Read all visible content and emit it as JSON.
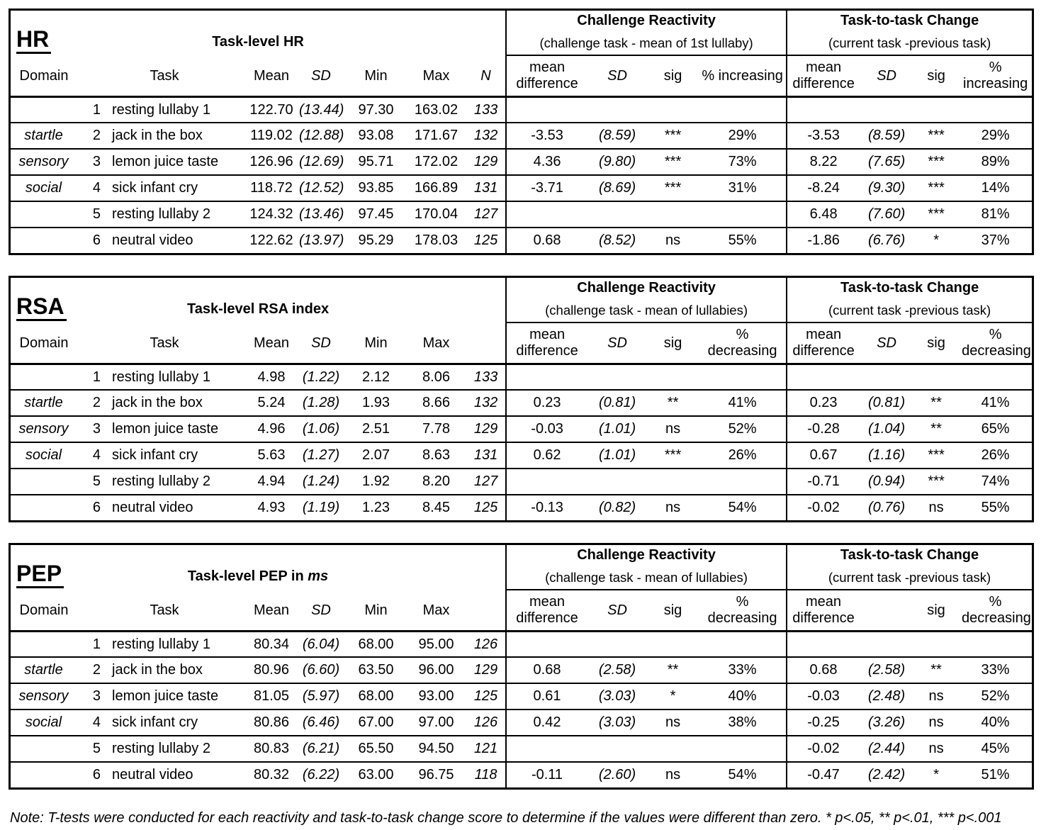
{
  "page": {
    "background": "#ffffff",
    "text_color": "#000000"
  },
  "tables": [
    {
      "title": "HR",
      "level_title": "Task-level HR",
      "level_title_italic": "",
      "col_labels": {
        "domain": "Domain",
        "task": "Task",
        "mean": "Mean",
        "sd": "SD",
        "min": "Min",
        "max": "Max",
        "n": "N"
      },
      "challenge_reactivity": {
        "title": "Challenge Reactivity",
        "subtitle": "(challenge task - mean of 1st lullaby)",
        "cols": [
          "mean difference",
          "SD",
          "sig",
          "% increasing"
        ]
      },
      "task_to_task": {
        "title": "Task-to-task Change",
        "subtitle": "(current task -previous task)",
        "cols": [
          "mean difference",
          "SD",
          "sig",
          "% increasing"
        ]
      },
      "rows": [
        [
          "",
          "1",
          "resting lullaby 1",
          "122.70",
          "(13.44)",
          "97.30",
          "163.02",
          "133",
          "",
          "",
          "",
          "",
          "",
          "",
          "",
          ""
        ],
        [
          "startle",
          "2",
          "jack in the box",
          "119.02",
          "(12.88)",
          "93.08",
          "171.67",
          "132",
          "-3.53",
          "(8.59)",
          "***",
          "29%",
          "-3.53",
          "(8.59)",
          "***",
          "29%"
        ],
        [
          "sensory",
          "3",
          "lemon juice taste",
          "126.96",
          "(12.69)",
          "95.71",
          "172.02",
          "129",
          "4.36",
          "(9.80)",
          "***",
          "73%",
          "8.22",
          "(7.65)",
          "***",
          "89%"
        ],
        [
          "social",
          "4",
          "sick infant cry",
          "118.72",
          "(12.52)",
          "93.85",
          "166.89",
          "131",
          "-3.71",
          "(8.69)",
          "***",
          "31%",
          "-8.24",
          "(9.30)",
          "***",
          "14%"
        ],
        [
          "",
          "5",
          "resting lullaby 2",
          "124.32",
          "(13.46)",
          "97.45",
          "170.04",
          "127",
          "",
          "",
          "",
          "",
          "6.48",
          "(7.60)",
          "***",
          "81%"
        ],
        [
          "",
          "6",
          "neutral video",
          "122.62",
          "(13.97)",
          "95.29",
          "178.03",
          "125",
          "0.68",
          "(8.52)",
          "ns",
          "55%",
          "-1.86",
          "(6.76)",
          "*",
          "37%"
        ]
      ]
    },
    {
      "title": "RSA",
      "level_title": "Task-level RSA index",
      "level_title_italic": "",
      "col_labels": {
        "domain": "Domain",
        "task": "Task",
        "mean": "Mean",
        "sd": "SD",
        "min": "Min",
        "max": "Max",
        "n": ""
      },
      "challenge_reactivity": {
        "title": "Challenge Reactivity",
        "subtitle": "(challenge task - mean of lullabies)",
        "cols": [
          "mean difference",
          "SD",
          "sig",
          "%\ndecreasing"
        ]
      },
      "task_to_task": {
        "title": "Task-to-task Change",
        "subtitle": "(current task -previous task)",
        "cols": [
          "mean difference",
          "SD",
          "sig",
          "%\ndecreasing"
        ]
      },
      "rows": [
        [
          "",
          "1",
          "resting lullaby 1",
          "4.98",
          "(1.22)",
          "2.12",
          "8.06",
          "133",
          "",
          "",
          "",
          "",
          "",
          "",
          "",
          ""
        ],
        [
          "startle",
          "2",
          "jack in the box",
          "5.24",
          "(1.28)",
          "1.93",
          "8.66",
          "132",
          "0.23",
          "(0.81)",
          "**",
          "41%",
          "0.23",
          "(0.81)",
          "**",
          "41%"
        ],
        [
          "sensory",
          "3",
          "lemon juice taste",
          "4.96",
          "(1.06)",
          "2.51",
          "7.78",
          "129",
          "-0.03",
          "(1.01)",
          "ns",
          "52%",
          "-0.28",
          "(1.04)",
          "**",
          "65%"
        ],
        [
          "social",
          "4",
          "sick infant cry",
          "5.63",
          "(1.27)",
          "2.07",
          "8.63",
          "131",
          "0.62",
          "(1.01)",
          "***",
          "26%",
          "0.67",
          "(1.16)",
          "***",
          "26%"
        ],
        [
          "",
          "5",
          "resting lullaby 2",
          "4.94",
          "(1.24)",
          "1.92",
          "8.20",
          "127",
          "",
          "",
          "",
          "",
          "-0.71",
          "(0.94)",
          "***",
          "74%"
        ],
        [
          "",
          "6",
          "neutral video",
          "4.93",
          "(1.19)",
          "1.23",
          "8.45",
          "125",
          "-0.13",
          "(0.82)",
          "ns",
          "54%",
          "-0.02",
          "(0.76)",
          "ns",
          "55%"
        ]
      ]
    },
    {
      "title": "PEP",
      "level_title": "Task-level PEP in ",
      "level_title_italic": "ms",
      "col_labels": {
        "domain": "Domain",
        "task": "Task",
        "mean": "Mean",
        "sd": "SD",
        "min": "Min",
        "max": "Max",
        "n": ""
      },
      "challenge_reactivity": {
        "title": "Challenge Reactivity",
        "subtitle": "(challenge task - mean of lullabies)",
        "cols": [
          "mean difference",
          "SD",
          "sig",
          "%\ndecreasing"
        ]
      },
      "task_to_task": {
        "title": "Task-to-task Change",
        "subtitle": "(current task -previous task)",
        "cols": [
          "mean difference",
          "",
          "sig",
          "%\ndecreasing"
        ]
      },
      "rows": [
        [
          "",
          "1",
          "resting lullaby 1",
          "80.34",
          "(6.04)",
          "68.00",
          "95.00",
          "126",
          "",
          "",
          "",
          "",
          "",
          "",
          "",
          ""
        ],
        [
          "startle",
          "2",
          "jack in the box",
          "80.96",
          "(6.60)",
          "63.50",
          "96.00",
          "129",
          "0.68",
          "(2.58)",
          "**",
          "33%",
          "0.68",
          "(2.58)",
          "**",
          "33%"
        ],
        [
          "sensory",
          "3",
          "lemon juice taste",
          "81.05",
          "(5.97)",
          "68.00",
          "93.00",
          "125",
          "0.61",
          "(3.03)",
          "*",
          "40%",
          "-0.03",
          "(2.48)",
          "ns",
          "52%"
        ],
        [
          "social",
          "4",
          "sick infant cry",
          "80.86",
          "(6.46)",
          "67.00",
          "97.00",
          "126",
          "0.42",
          "(3.03)",
          "ns",
          "38%",
          "-0.25",
          "(3.26)",
          "ns",
          "40%"
        ],
        [
          "",
          "5",
          "resting lullaby 2",
          "80.83",
          "(6.21)",
          "65.50",
          "94.50",
          "121",
          "",
          "",
          "",
          "",
          "-0.02",
          "(2.44)",
          "ns",
          "45%"
        ],
        [
          "",
          "6",
          "neutral video",
          "80.32",
          "(6.22)",
          "63.00",
          "96.75",
          "118",
          "-0.11",
          "(2.60)",
          "ns",
          "54%",
          "-0.47",
          "(2.42)",
          "*",
          "51%"
        ]
      ]
    }
  ],
  "note": "Note: T-tests were conducted for each reactivity and task-to-task change score to determine if the values were different than zero. * p<.05, ** p<.01, *** p<.001"
}
